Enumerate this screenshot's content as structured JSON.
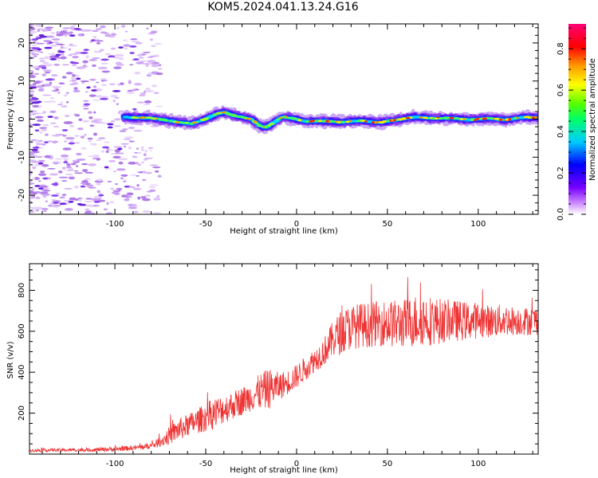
{
  "title": "KOM5.2024.041.13.24.G16",
  "chart_data": [
    {
      "type": "heatmap",
      "title": "KOM5.2024.041.13.24.G16",
      "xlabel": "Height of straight line (km)",
      "ylabel": "Frequency (Hz)",
      "xlim": [
        -147,
        133
      ],
      "ylim": [
        -25,
        25
      ],
      "x_ticks": [
        -100,
        -50,
        0,
        50,
        100
      ],
      "y_ticks": [
        -20,
        -10,
        0,
        10,
        20
      ],
      "grid": false,
      "colorbar": {
        "label": "Normalized spectral amplitude",
        "range": [
          0,
          0.92
        ],
        "ticks": [
          0.0,
          0.2,
          0.4,
          0.6,
          0.8
        ],
        "colormap": "rainbow (white→violet→blue→cyan→green→yellow→orange→red→pink)"
      },
      "signal_track": {
        "description": "Narrow Doppler line near 0 Hz visible from about -95 km to the right edge; scattered low-amplitude noise at left",
        "x_km": [
          -95,
          -80,
          -65,
          -58,
          -50,
          -45,
          -40,
          -35,
          -30,
          -25,
          -20,
          -17,
          -12,
          -8,
          -3,
          5,
          15,
          25,
          35,
          45,
          55,
          65,
          75,
          85,
          95,
          105,
          115,
          125,
          133
        ],
        "center_freq_hz": [
          0.5,
          0.3,
          -0.8,
          -1.2,
          0.0,
          1.2,
          1.8,
          1.0,
          0.5,
          0.0,
          -1.8,
          -2.2,
          -0.8,
          0.6,
          0.3,
          -0.6,
          -0.5,
          -0.8,
          -0.4,
          -0.9,
          -0.2,
          0.6,
          0.2,
          0.3,
          -0.2,
          0.2,
          -0.2,
          0.5,
          0.4
        ]
      }
    },
    {
      "type": "line",
      "xlabel": "Height of straight line (km)",
      "ylabel": "SNR (v/v)",
      "xlim": [
        -147,
        133
      ],
      "ylim": [
        0,
        930
      ],
      "x_ticks": [
        -100,
        -50,
        0,
        50,
        100
      ],
      "y_ticks": [
        200,
        400,
        600,
        800
      ],
      "grid": false,
      "series": [
        {
          "color": "#ee3333",
          "x": [
            -147,
            -130,
            -115,
            -100,
            -90,
            -80,
            -75,
            -70,
            -65,
            -60,
            -55,
            -50,
            -45,
            -40,
            -35,
            -30,
            -25,
            -20,
            -15,
            -10,
            -5,
            0,
            5,
            10,
            15,
            20,
            25,
            30,
            35,
            40,
            45,
            50,
            55,
            60,
            65,
            70,
            75,
            80,
            85,
            90,
            95,
            100,
            105,
            110,
            115,
            120,
            125,
            133
          ],
          "values": [
            18,
            20,
            20,
            25,
            30,
            40,
            60,
            90,
            120,
            140,
            160,
            180,
            200,
            220,
            240,
            260,
            280,
            305,
            320,
            330,
            350,
            380,
            420,
            460,
            500,
            560,
            600,
            620,
            630,
            630,
            640,
            640,
            635,
            640,
            650,
            660,
            650,
            650,
            655,
            650,
            650,
            655,
            650,
            650,
            655,
            650,
            650,
            650
          ],
          "noise_amplitude": [
            8,
            8,
            8,
            12,
            12,
            15,
            25,
            45,
            55,
            55,
            60,
            70,
            80,
            70,
            70,
            70,
            70,
            90,
            100,
            70,
            60,
            60,
            60,
            60,
            70,
            90,
            110,
            110,
            110,
            110,
            110,
            115,
            120,
            120,
            130,
            130,
            120,
            110,
            100,
            100,
            90,
            90,
            80,
            80,
            80,
            70,
            70,
            70
          ]
        }
      ]
    }
  ]
}
